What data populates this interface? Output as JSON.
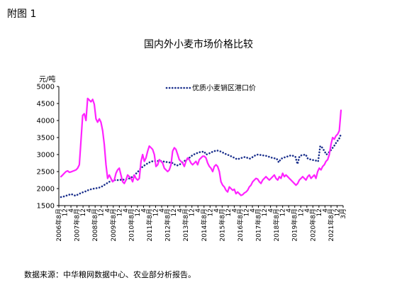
{
  "caption": "附图 1",
  "source": "数据来源：中华粮网数据中心、农业部分析报告。",
  "chart_data": {
    "type": "line",
    "title": "国内外小麦市场价格比较",
    "ylabel": "元/吨",
    "ylim": [
      1500,
      5000
    ],
    "yticks": [
      1500,
      2000,
      2500,
      3000,
      3500,
      4000,
      4500,
      5000
    ],
    "x_tick_labels": [
      "2006年8月",
      "12",
      "4",
      "2007年8月",
      "12",
      "4",
      "2008年8月",
      "12",
      "4",
      "2009年8月",
      "12",
      "4",
      "2010年8月",
      "12",
      "4",
      "2011年8月",
      "12",
      "4",
      "2012年8月",
      "12",
      "4",
      "2013年8月",
      "12",
      "4",
      "2014年8月",
      "12",
      "4",
      "2015年8月",
      "12",
      "4",
      "2016年8月",
      "12",
      "4",
      "2017年8月",
      "12",
      "4",
      "2018年8月",
      "12",
      "4",
      "2019年8月",
      "12",
      "4",
      "2020年8月",
      "12",
      "4",
      "2021年8月",
      "12",
      "3月"
    ],
    "legend": "top-center",
    "series": [
      {
        "name": "优质小麦销区港口价",
        "style": "dotted",
        "color": "#1a2f8c",
        "values": [
          1750,
          1760,
          1780,
          1800,
          1820,
          1840,
          1810,
          1790,
          1820,
          1850,
          1880,
          1900,
          1920,
          1950,
          1970,
          1990,
          2000,
          2010,
          2020,
          2040,
          2070,
          2110,
          2150,
          2190,
          2220,
          2250,
          2250,
          2250,
          2250,
          2260,
          2260,
          2270,
          2280,
          2300,
          2330,
          2370,
          2430,
          2490,
          2560,
          2620,
          2670,
          2710,
          2750,
          2780,
          2800,
          2810,
          2810,
          2810,
          2810,
          2800,
          2790,
          2780,
          2770,
          2760,
          2750,
          2700,
          2680,
          2700,
          2740,
          2790,
          2830,
          2870,
          2910,
          2960,
          3000,
          3030,
          3050,
          3070,
          3080,
          3090,
          3000,
          3020,
          3050,
          3080,
          3100,
          3120,
          3110,
          3090,
          3060,
          3030,
          3000,
          2980,
          2950,
          2920,
          2890,
          2860,
          2880,
          2900,
          2920,
          2930,
          2900,
          2880,
          2910,
          2950,
          2990,
          3000,
          2990,
          2980,
          2970,
          2960,
          2940,
          2920,
          2900,
          2890,
          2880,
          2770,
          2870,
          2900,
          2920,
          2940,
          2960,
          2980,
          2960,
          2940,
          2720,
          2950,
          2980,
          2990,
          3000,
          2880,
          2860,
          2850,
          2830,
          2820,
          2810,
          3250,
          3200,
          3100,
          3000,
          3050,
          3120,
          3200,
          3280,
          3380,
          3450,
          3600
        ],
        "gaps": [
          124
        ]
      },
      {
        "name": "",
        "style": "solid",
        "color": "#ff22ff",
        "values": [
          2350,
          2400,
          2450,
          2500,
          2520,
          2480,
          2490,
          2510,
          2530,
          2550,
          2600,
          2700,
          3400,
          4150,
          4200,
          4000,
          4650,
          4600,
          4550,
          4620,
          4480,
          4050,
          3950,
          4050,
          3950,
          3700,
          3300,
          2700,
          2300,
          2400,
          2300,
          2200,
          2250,
          2450,
          2550,
          2600,
          2400,
          2200,
          2150,
          2250,
          2400,
          2350,
          2300,
          2200,
          2400,
          2300,
          2250,
          2300,
          2800,
          3000,
          2800,
          2900,
          3100,
          3250,
          3200,
          3150,
          3000,
          2650,
          2700,
          2850,
          2800,
          2750,
          2600,
          2550,
          2500,
          2550,
          2700,
          3100,
          3200,
          3150,
          3000,
          2850,
          2800,
          2750,
          2650,
          2800,
          2900,
          2850,
          2750,
          2700,
          2750,
          2800,
          2700,
          2850,
          2900,
          2950,
          2950,
          2900,
          2750,
          2650,
          2600,
          2500,
          2650,
          2700,
          2650,
          2500,
          2200,
          2100,
          2050,
          1950,
          1900,
          2050,
          2000,
          1950,
          1980,
          1850,
          1900,
          1850,
          1800,
          1820,
          1870,
          1900,
          1950,
          2050,
          2100,
          2200,
          2250,
          2300,
          2280,
          2200,
          2150,
          2250,
          2300,
          2350,
          2300,
          2250,
          2300,
          2350,
          2400,
          2300,
          2250,
          2350,
          2300,
          2450,
          2350,
          2400,
          2350,
          2300,
          2250,
          2200,
          2150,
          2100,
          2150,
          2250,
          2300,
          2350,
          2300,
          2250,
          2350,
          2400,
          2300,
          2350,
          2400,
          2300,
          2500,
          2600,
          2550,
          2650,
          2700,
          2800,
          2850,
          3000,
          3300,
          3500,
          3450,
          3550,
          3600,
          3700,
          4300
        ]
      }
    ]
  }
}
